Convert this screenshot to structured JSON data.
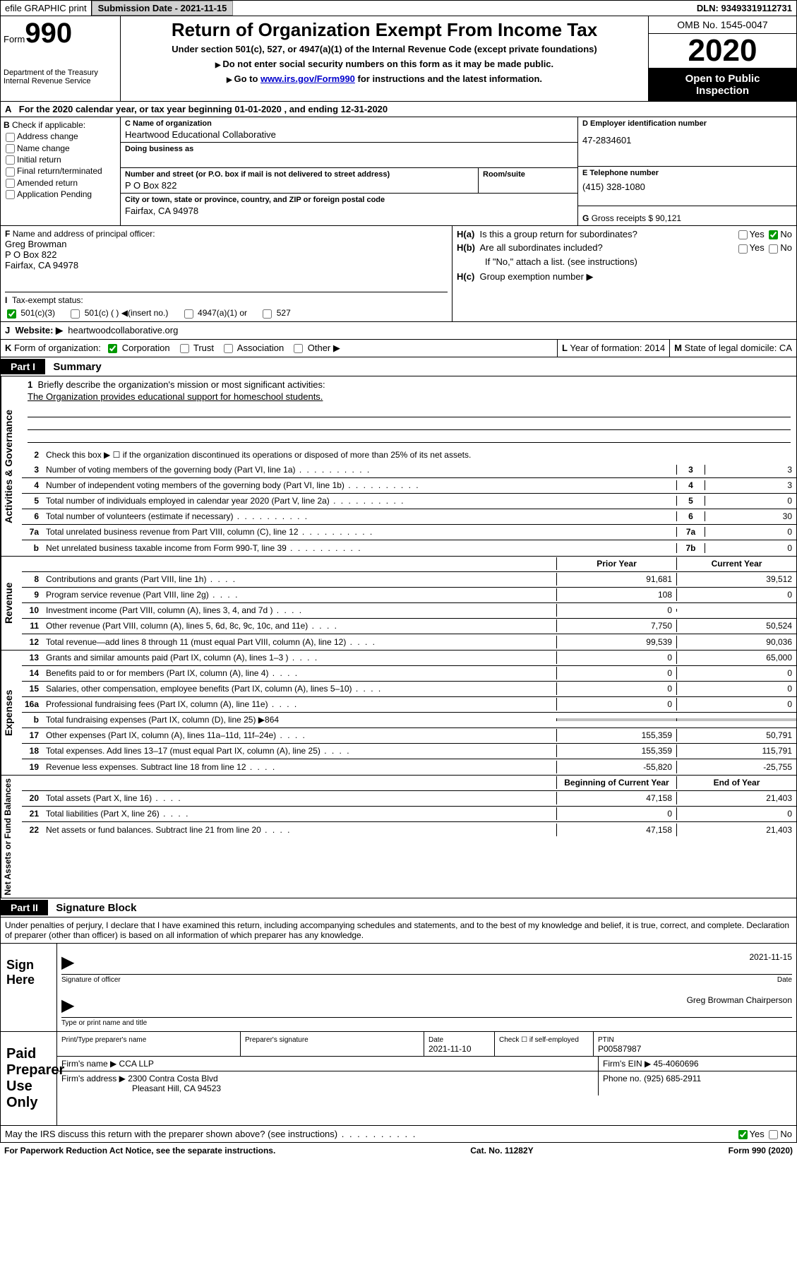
{
  "top": {
    "efile": "efile GRAPHIC print",
    "sub_label": "Submission Date - 2021-11-15",
    "dln": "DLN: 93493319112731"
  },
  "header": {
    "form_label": "Form",
    "form_number": "990",
    "dept1": "Department of the Treasury",
    "dept2": "Internal Revenue Service",
    "title": "Return of Organization Exempt From Income Tax",
    "subtitle": "Under section 501(c), 527, or 4947(a)(1) of the Internal Revenue Code (except private foundations)",
    "inst1": "Do not enter social security numbers on this form as it may be made public.",
    "inst2_pre": "Go to ",
    "inst2_link": "www.irs.gov/Form990",
    "inst2_post": " for instructions and the latest information.",
    "omb": "OMB No. 1545-0047",
    "year": "2020",
    "inspect1": "Open to Public",
    "inspect2": "Inspection"
  },
  "lineA": "For the 2020 calendar year, or tax year beginning 01-01-2020    , and ending 12-31-2020",
  "checkB": {
    "label": "Check if applicable:",
    "opts": [
      "Address change",
      "Name change",
      "Initial return",
      "Final return/terminated",
      "Amended return",
      "Application Pending"
    ]
  },
  "org": {
    "name_label": "Name of organization",
    "name": "Heartwood Educational Collaborative",
    "dba_label": "Doing business as",
    "addr_label": "Number and street (or P.O. box if mail is not delivered to street address)",
    "addr": "P O Box 822",
    "room_label": "Room/suite",
    "city_label": "City or town, state or province, country, and ZIP or foreign postal code",
    "city": "Fairfax, CA  94978"
  },
  "right": {
    "ein_label": "Employer identification number",
    "ein_letter": "D",
    "ein": "47-2834601",
    "tel_label": "Telephone number",
    "tel_letter": "E",
    "tel": "(415) 328-1080",
    "gross_letter": "G",
    "gross": "Gross receipts $ 90,121"
  },
  "F": {
    "label": "Name and address of principal officer:",
    "name": "Greg Browman",
    "addr1": "P O Box 822",
    "addr2": "Fairfax, CA  94978",
    "tax_label": "Tax-exempt status:",
    "opt1": "501(c)(3)",
    "opt2": "501(c) (  )",
    "opt2_suffix": "(insert no.)",
    "opt3": "4947(a)(1) or",
    "opt4": "527"
  },
  "H": {
    "a": "Is this a group return for subordinates?",
    "b": "Are all subordinates included?",
    "b_note": "If \"No,\" attach a list. (see instructions)",
    "c": "Group exemption number ▶"
  },
  "J": {
    "label": "Website: ▶",
    "value": "heartwoodcollaborative.org"
  },
  "K": {
    "label": "Form of organization:",
    "opts": [
      "Corporation",
      "Trust",
      "Association",
      "Other ▶"
    ],
    "L": "Year of formation: 2014",
    "M": "State of legal domicile: CA"
  },
  "part1": {
    "header": "Part I",
    "title": "Summary",
    "mission_label": "Briefly describe the organization's mission or most significant activities:",
    "mission": "The Organization provides educational support for homeschool students.",
    "line2": "Check this box ▶ ☐  if the organization discontinued its operations or disposed of more than 25% of its net assets.",
    "sections": {
      "governance": "Activities & Governance",
      "revenue": "Revenue",
      "expenses": "Expenses",
      "netassets": "Net Assets or Fund Balances"
    },
    "rows_gov": [
      {
        "n": "3",
        "t": "Number of voting members of the governing body (Part VI, line 1a)",
        "box": "3",
        "v": "3"
      },
      {
        "n": "4",
        "t": "Number of independent voting members of the governing body (Part VI, line 1b)",
        "box": "4",
        "v": "3"
      },
      {
        "n": "5",
        "t": "Total number of individuals employed in calendar year 2020 (Part V, line 2a)",
        "box": "5",
        "v": "0"
      },
      {
        "n": "6",
        "t": "Total number of volunteers (estimate if necessary)",
        "box": "6",
        "v": "30"
      },
      {
        "n": "7a",
        "t": "Total unrelated business revenue from Part VIII, column (C), line 12",
        "box": "7a",
        "v": "0"
      },
      {
        "n": "b",
        "t": "Net unrelated business taxable income from Form 990-T, line 39",
        "box": "7b",
        "v": "0"
      }
    ],
    "col_headers": {
      "prior": "Prior Year",
      "current": "Current Year",
      "begin": "Beginning of Current Year",
      "end": "End of Year"
    },
    "rows_rev": [
      {
        "n": "8",
        "t": "Contributions and grants (Part VIII, line 1h)",
        "p": "91,681",
        "c": "39,512"
      },
      {
        "n": "9",
        "t": "Program service revenue (Part VIII, line 2g)",
        "p": "108",
        "c": "0"
      },
      {
        "n": "10",
        "t": "Investment income (Part VIII, column (A), lines 3, 4, and 7d )",
        "p": "0",
        "c": ""
      },
      {
        "n": "11",
        "t": "Other revenue (Part VIII, column (A), lines 5, 6d, 8c, 9c, 10c, and 11e)",
        "p": "7,750",
        "c": "50,524"
      },
      {
        "n": "12",
        "t": "Total revenue—add lines 8 through 11 (must equal Part VIII, column (A), line 12)",
        "p": "99,539",
        "c": "90,036"
      }
    ],
    "rows_exp": [
      {
        "n": "13",
        "t": "Grants and similar amounts paid (Part IX, column (A), lines 1–3 )",
        "p": "0",
        "c": "65,000"
      },
      {
        "n": "14",
        "t": "Benefits paid to or for members (Part IX, column (A), line 4)",
        "p": "0",
        "c": "0"
      },
      {
        "n": "15",
        "t": "Salaries, other compensation, employee benefits (Part IX, column (A), lines 5–10)",
        "p": "0",
        "c": "0"
      },
      {
        "n": "16a",
        "t": "Professional fundraising fees (Part IX, column (A), line 11e)",
        "p": "0",
        "c": "0"
      },
      {
        "n": "b",
        "t": "Total fundraising expenses (Part IX, column (D), line 25) ▶864",
        "p": "",
        "c": "",
        "gray": true
      },
      {
        "n": "17",
        "t": "Other expenses (Part IX, column (A), lines 11a–11d, 11f–24e)",
        "p": "155,359",
        "c": "50,791"
      },
      {
        "n": "18",
        "t": "Total expenses. Add lines 13–17 (must equal Part IX, column (A), line 25)",
        "p": "155,359",
        "c": "115,791"
      },
      {
        "n": "19",
        "t": "Revenue less expenses. Subtract line 18 from line 12",
        "p": "-55,820",
        "c": "-25,755"
      }
    ],
    "rows_net": [
      {
        "n": "20",
        "t": "Total assets (Part X, line 16)",
        "p": "47,158",
        "c": "21,403"
      },
      {
        "n": "21",
        "t": "Total liabilities (Part X, line 26)",
        "p": "0",
        "c": "0"
      },
      {
        "n": "22",
        "t": "Net assets or fund balances. Subtract line 21 from line 20",
        "p": "47,158",
        "c": "21,403"
      }
    ]
  },
  "part2": {
    "header": "Part II",
    "title": "Signature Block",
    "perjury": "Under penalties of perjury, I declare that I have examined this return, including accompanying schedules and statements, and to the best of my knowledge and belief, it is true, correct, and complete. Declaration of preparer (other than officer) is based on all information of which preparer has any knowledge.",
    "sign_here": "Sign Here",
    "sig_officer": "Signature of officer",
    "sig_date": "2021-11-15",
    "date_label": "Date",
    "officer_name": "Greg Browman Chairperson",
    "name_title_label": "Type or print name and title",
    "paid": "Paid Preparer Use Only",
    "prep_name_label": "Print/Type preparer's name",
    "prep_sig_label": "Preparer's signature",
    "prep_date_label": "Date",
    "prep_date": "2021-11-10",
    "self_emp": "Check ☐ if self-employed",
    "ptin_label": "PTIN",
    "ptin": "P00587987",
    "firm_name_label": "Firm's name    ▶",
    "firm_name": "CCA LLP",
    "firm_ein_label": "Firm's EIN ▶",
    "firm_ein": "45-4060696",
    "firm_addr_label": "Firm's address ▶",
    "firm_addr1": "2300 Contra Costa Blvd",
    "firm_addr2": "Pleasant Hill, CA  94523",
    "phone_label": "Phone no.",
    "phone": "(925) 685-2911",
    "discuss": "May the IRS discuss this return with the preparer shown above? (see instructions)"
  },
  "footer": {
    "paperwork": "For Paperwork Reduction Act Notice, see the separate instructions.",
    "cat": "Cat. No. 11282Y",
    "form": "Form 990 (2020)"
  }
}
